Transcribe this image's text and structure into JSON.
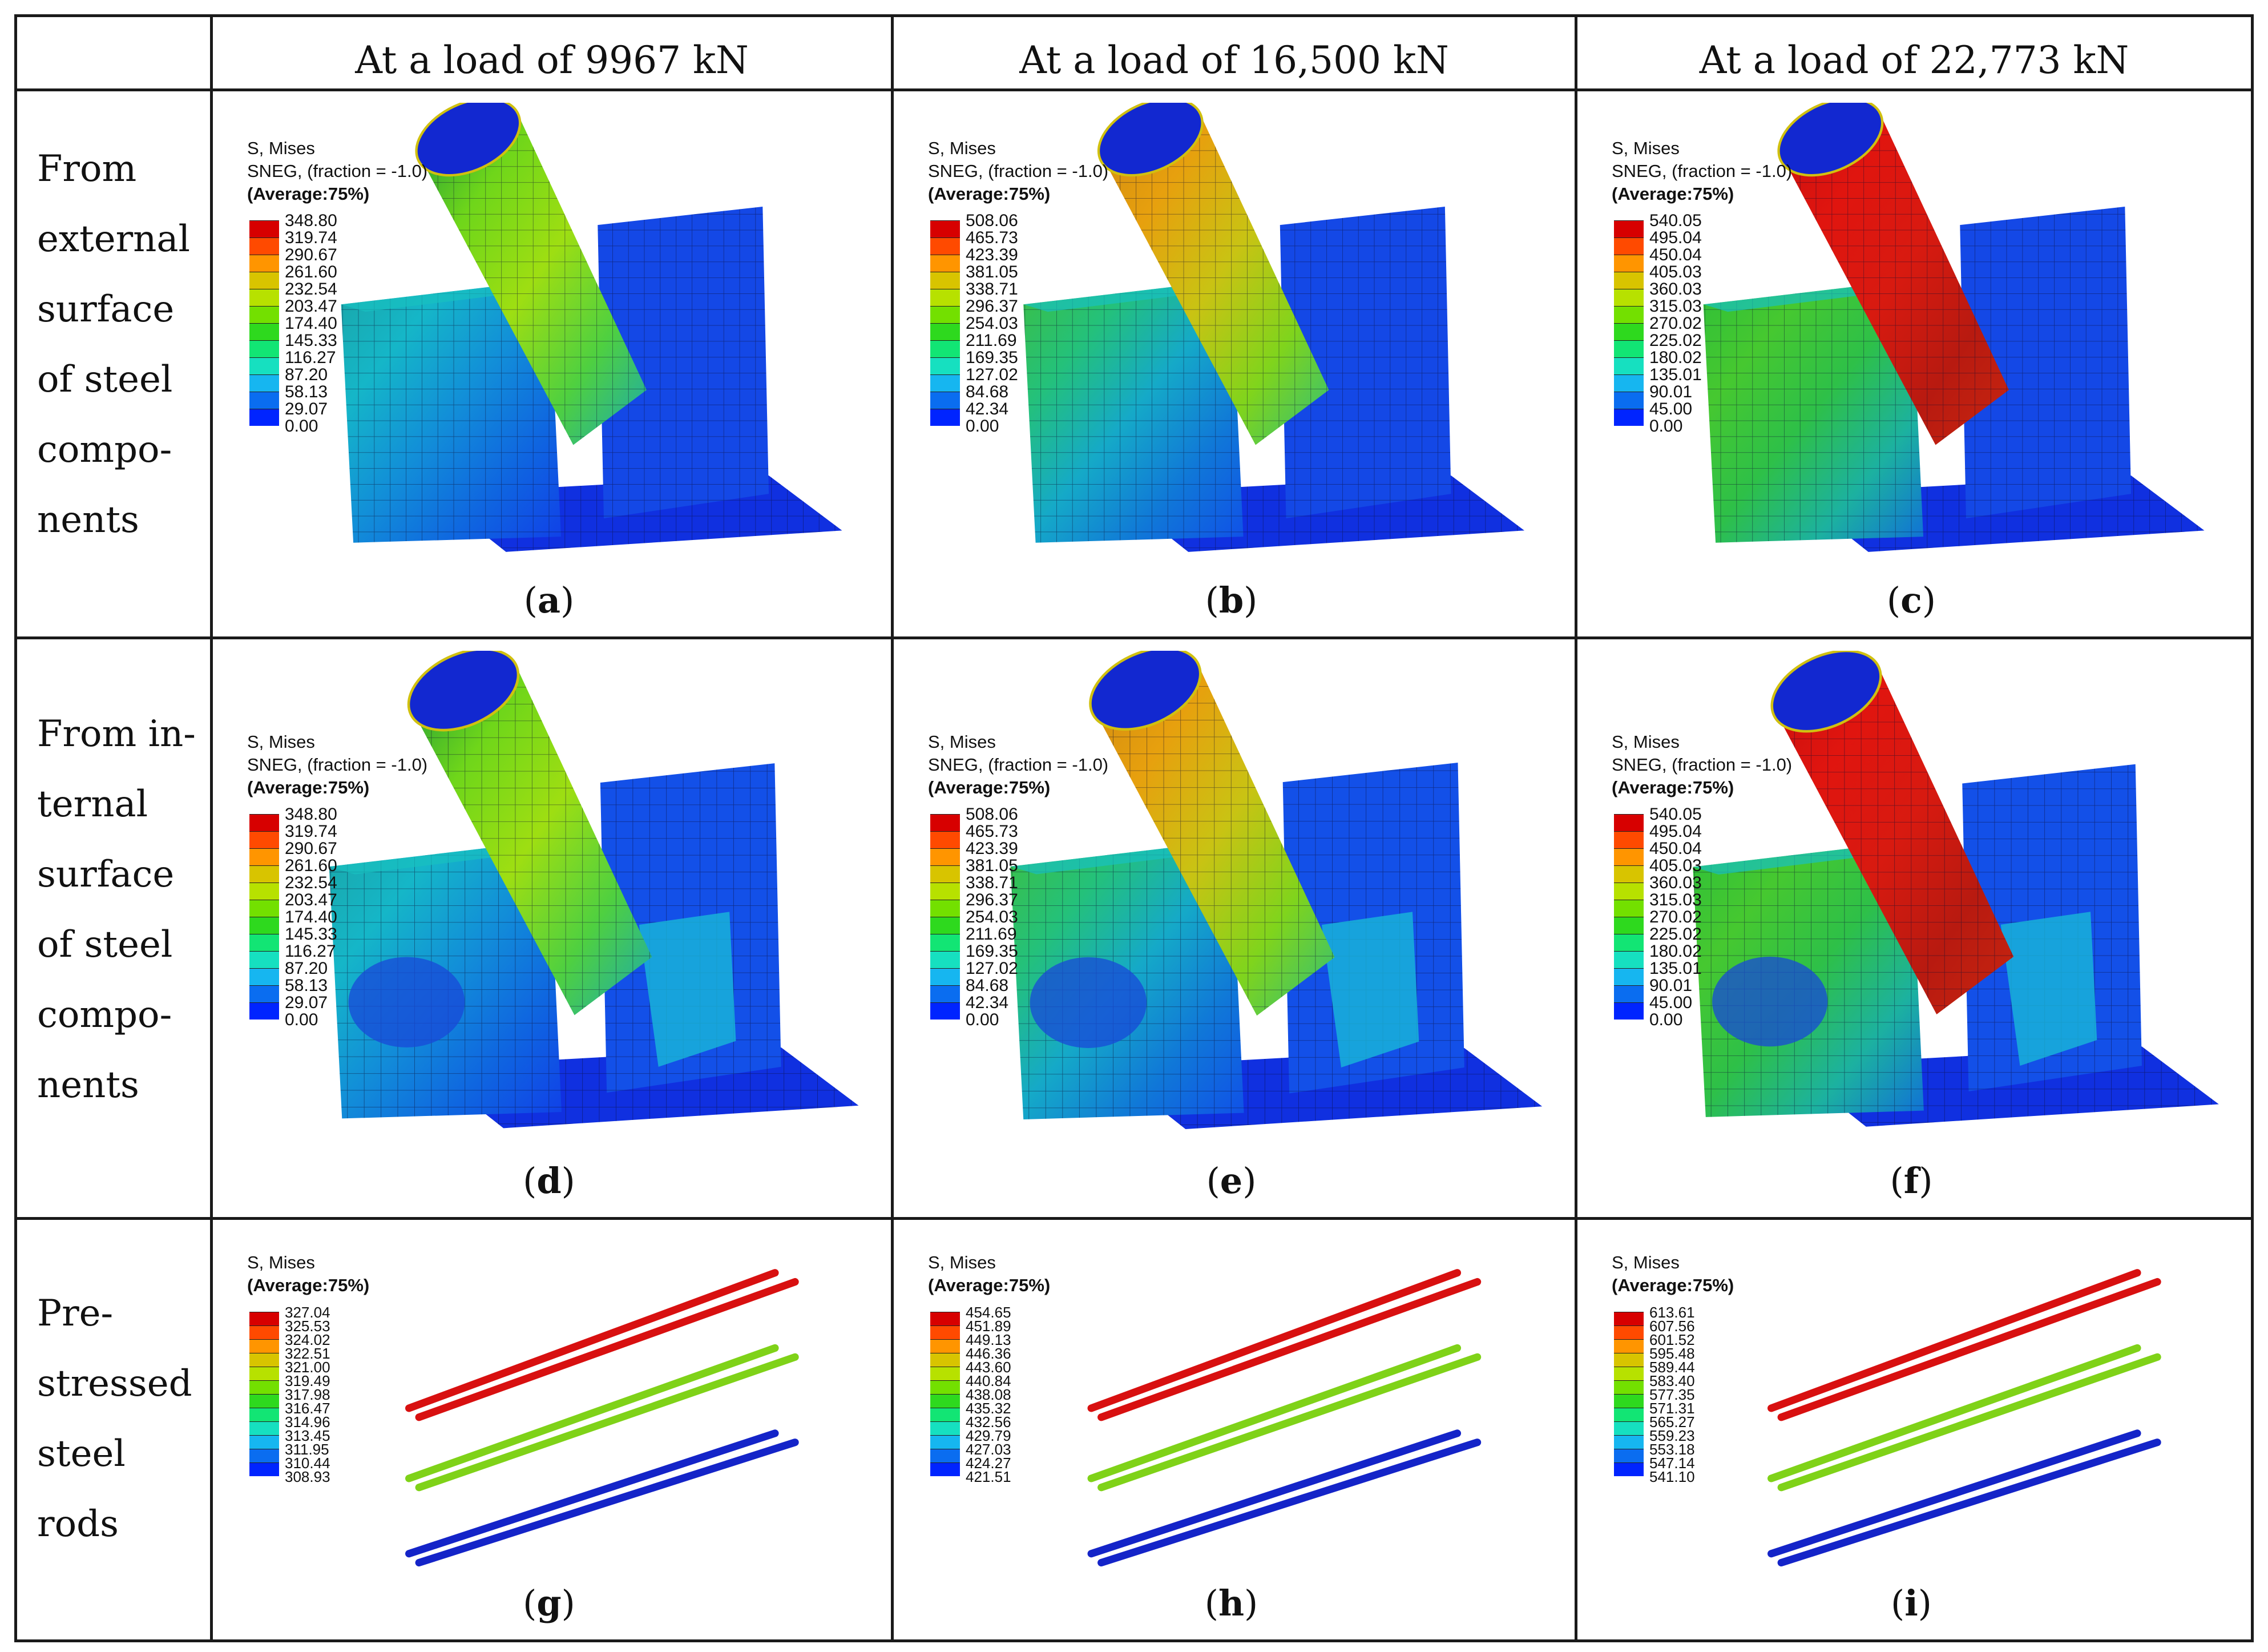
{
  "column_headers": [
    "At a load of 9967 kN",
    "At a load of 16,500 kN",
    "At a load of 22,773 kN"
  ],
  "row_labels": [
    [
      "From",
      "external",
      "surface",
      "of steel",
      "compo-",
      "nents"
    ],
    [
      "From in-",
      "ternal",
      "surface",
      "of steel",
      "compo-",
      "nents"
    ],
    [
      "Pre-",
      "stressed",
      "steel",
      "rods"
    ]
  ],
  "legend_common": {
    "title": "S, Mises",
    "sneg": "SNEG, (fraction = -1.0)",
    "average": "(Average:75%)"
  },
  "colors": {
    "scale": [
      "#d70000",
      "#ff4a00",
      "#ff9500",
      "#d8c400",
      "#b7e100",
      "#73e000",
      "#2ed91e",
      "#12e574",
      "#16e0c0",
      "#16b6f0",
      "#0a6df0",
      "#0024ff"
    ],
    "rod_red": "#d81010",
    "rod_green": "#7fd218",
    "rod_blue": "#1424c8",
    "steel_base": "#1030e0"
  },
  "panels": [
    {
      "id": "a",
      "caption": "a",
      "legend": [
        "348.80",
        "319.74",
        "290.67",
        "261.60",
        "232.54",
        "203.47",
        "174.40",
        "145.33",
        "116.27",
        "87.20",
        "58.13",
        "29.07",
        "0.00"
      ],
      "has_sneg": true
    },
    {
      "id": "b",
      "caption": "b",
      "legend": [
        "508.06",
        "465.73",
        "423.39",
        "381.05",
        "338.71",
        "296.37",
        "254.03",
        "211.69",
        "169.35",
        "127.02",
        "84.68",
        "42.34",
        "0.00"
      ],
      "has_sneg": true
    },
    {
      "id": "c",
      "caption": "c",
      "legend": [
        "540.05",
        "495.04",
        "450.04",
        "405.03",
        "360.03",
        "315.03",
        "270.02",
        "225.02",
        "180.02",
        "135.01",
        "90.01",
        "45.00",
        "0.00"
      ],
      "has_sneg": true
    },
    {
      "id": "d",
      "caption": "d",
      "legend": [
        "348.80",
        "319.74",
        "290.67",
        "261.60",
        "232.54",
        "203.47",
        "174.40",
        "145.33",
        "116.27",
        "87.20",
        "58.13",
        "29.07",
        "0.00"
      ],
      "has_sneg": true
    },
    {
      "id": "e",
      "caption": "e",
      "legend": [
        "508.06",
        "465.73",
        "423.39",
        "381.05",
        "338.71",
        "296.37",
        "254.03",
        "211.69",
        "169.35",
        "127.02",
        "84.68",
        "42.34",
        "0.00"
      ],
      "has_sneg": true
    },
    {
      "id": "f",
      "caption": "f",
      "legend": [
        "540.05",
        "495.04",
        "450.04",
        "405.03",
        "360.03",
        "315.03",
        "270.02",
        "225.02",
        "180.02",
        "135.01",
        "90.01",
        "45.00",
        "0.00"
      ],
      "has_sneg": true
    },
    {
      "id": "g",
      "caption": "g",
      "legend": [
        "327.04",
        "325.53",
        "324.02",
        "322.51",
        "321.00",
        "319.49",
        "317.98",
        "316.47",
        "314.96",
        "313.45",
        "311.95",
        "310.44",
        "308.93"
      ],
      "has_sneg": false
    },
    {
      "id": "h",
      "caption": "h",
      "legend": [
        "454.65",
        "451.89",
        "449.13",
        "446.36",
        "443.60",
        "440.84",
        "438.08",
        "435.32",
        "432.56",
        "429.79",
        "427.03",
        "424.27",
        "421.51"
      ],
      "has_sneg": false
    },
    {
      "id": "i",
      "caption": "i",
      "legend": [
        "613.61",
        "607.56",
        "601.52",
        "595.48",
        "589.44",
        "583.40",
        "577.35",
        "571.31",
        "565.27",
        "559.23",
        "553.18",
        "547.14",
        "541.10"
      ],
      "has_sneg": false
    }
  ]
}
